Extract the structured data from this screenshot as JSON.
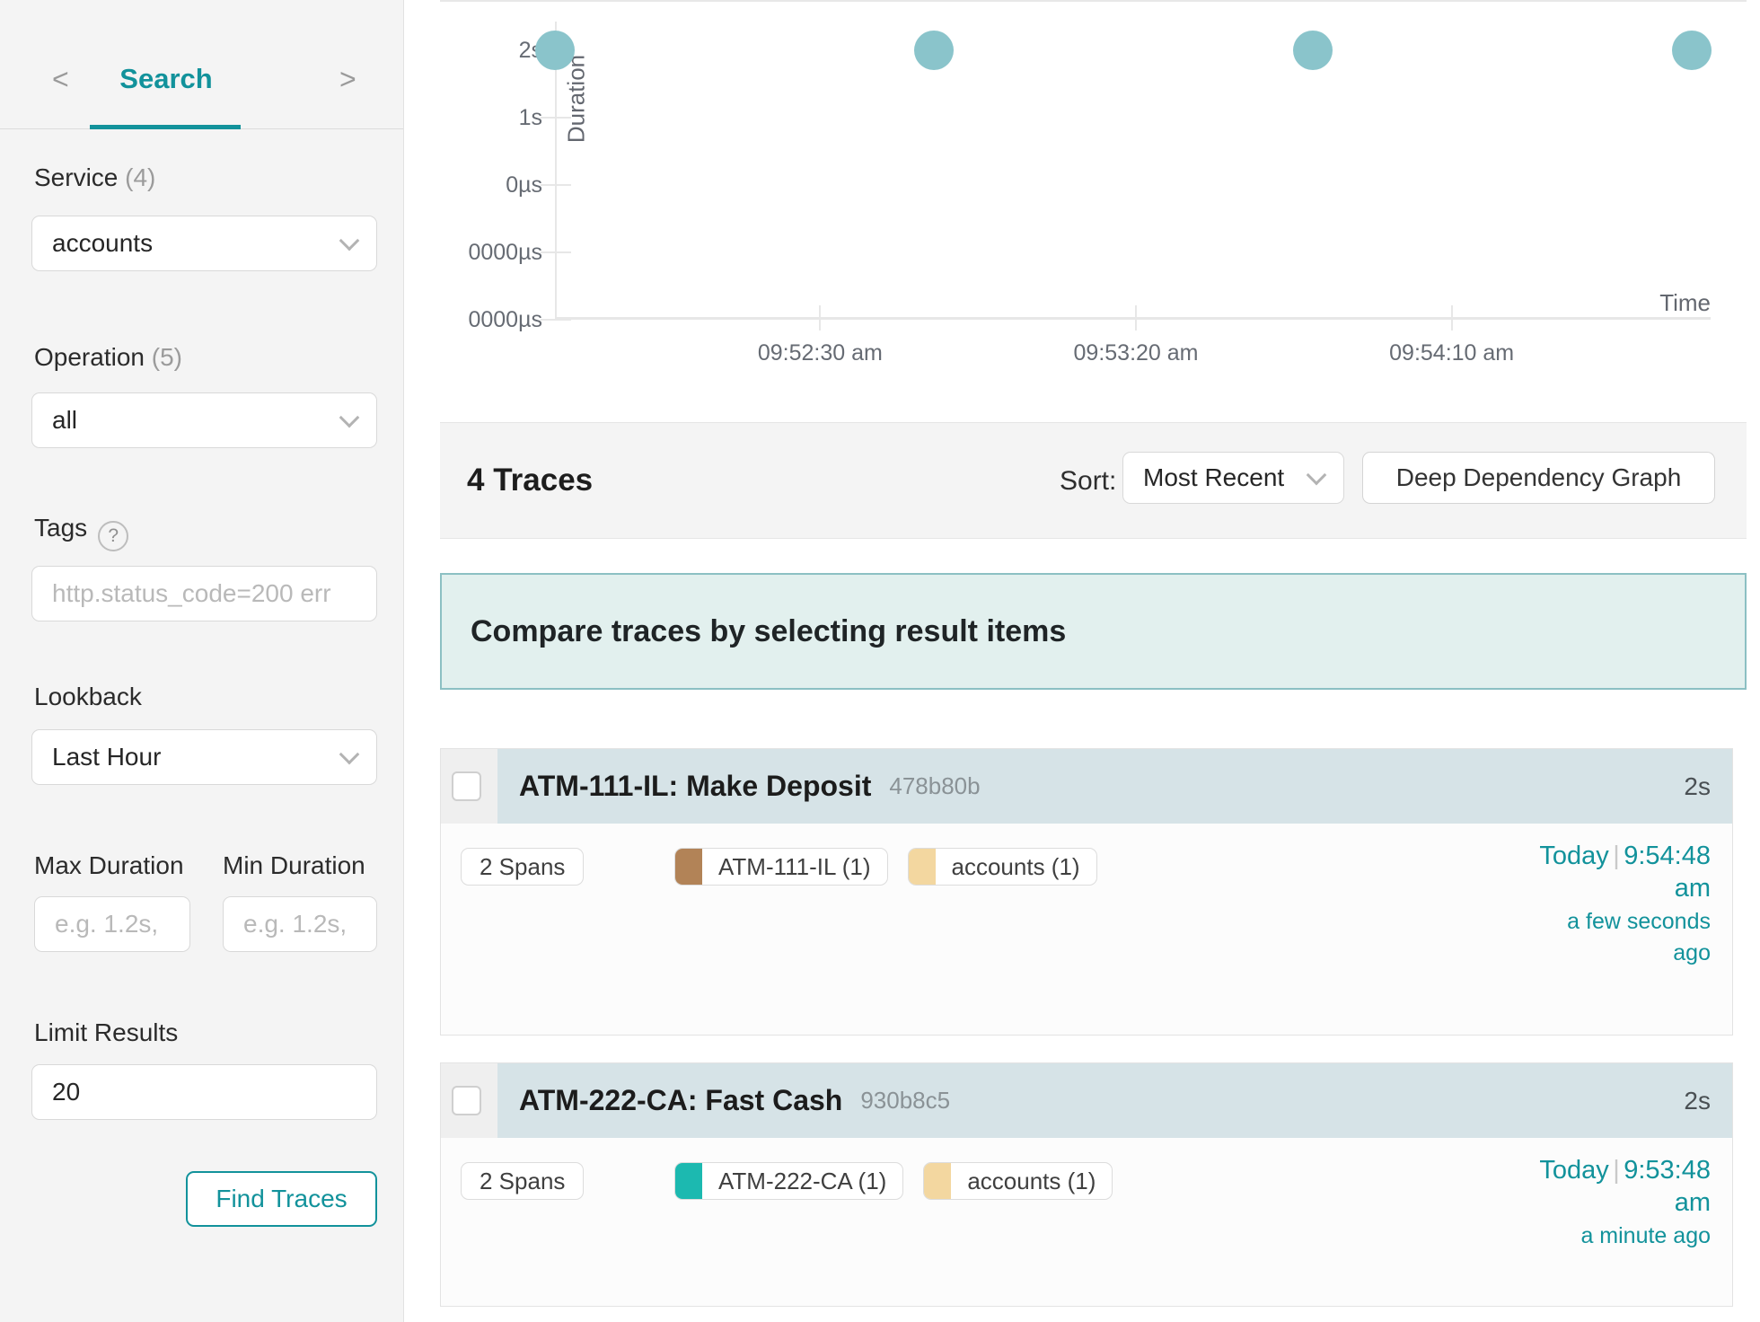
{
  "accent_color": "#12929b",
  "sidebar": {
    "nav": {
      "back": "<",
      "title": "Search",
      "forward": ">"
    },
    "service": {
      "label": "Service",
      "count": "(4)",
      "value": "accounts"
    },
    "operation": {
      "label": "Operation",
      "count": "(5)",
      "value": "all"
    },
    "tags": {
      "label": "Tags",
      "help_icon": "?",
      "placeholder": "http.status_code=200 err"
    },
    "lookback": {
      "label": "Lookback",
      "value": "Last Hour"
    },
    "max_duration": {
      "label": "Max Duration",
      "placeholder": "e.g. 1.2s,"
    },
    "min_duration": {
      "label": "Min Duration",
      "placeholder": "e.g. 1.2s,"
    },
    "limit": {
      "label": "Limit Results",
      "value": "20"
    },
    "find_button": "Find Traces"
  },
  "chart_data": {
    "type": "scatter",
    "title": "",
    "xlabel": "Time",
    "ylabel": "Duration",
    "grid": false,
    "legend": false,
    "point_color": "#8ac4cb",
    "yticks": [
      {
        "label": "2s"
      },
      {
        "label": "1s"
      },
      {
        "label": "0µs"
      },
      {
        "label": "0000µs"
      },
      {
        "label": "0000µs"
      }
    ],
    "xticks": [
      {
        "label": "09:52:30 am",
        "time": "09:52:30"
      },
      {
        "label": "09:53:20 am",
        "time": "09:53:20"
      },
      {
        "label": "09:54:10 am",
        "time": "09:54:10"
      }
    ],
    "x_domain": [
      "09:51:48",
      "09:54:51"
    ],
    "points": [
      {
        "time": "09:51:48",
        "duration": "2s"
      },
      {
        "time": "09:52:48",
        "duration": "2s"
      },
      {
        "time": "09:53:48",
        "duration": "2s"
      },
      {
        "time": "09:54:48",
        "duration": "2s"
      }
    ]
  },
  "results_header": {
    "count_label": "4 Traces",
    "sort_label": "Sort:",
    "sort_value": "Most Recent",
    "ddg_button": "Deep Dependency Graph"
  },
  "compare_banner": "Compare traces by selecting result items",
  "time_separator": "|",
  "traces": [
    {
      "title": "ATM-111-IL: Make Deposit",
      "trace_id": "478b80b",
      "duration": "2s",
      "spans": "2 Spans",
      "tags": [
        {
          "label": "ATM-111-IL (1)",
          "color": "#b28357"
        },
        {
          "label": "accounts (1)",
          "color": "#f3d7a0"
        }
      ],
      "date": "Today",
      "time": "9:54:48 am",
      "relative": "a few seconds ago"
    },
    {
      "title": "ATM-222-CA: Fast Cash",
      "trace_id": "930b8c5",
      "duration": "2s",
      "spans": "2 Spans",
      "tags": [
        {
          "label": "ATM-222-CA (1)",
          "color": "#1cb9b0"
        },
        {
          "label": "accounts (1)",
          "color": "#f3d7a0"
        }
      ],
      "date": "Today",
      "time": "9:53:48 am",
      "relative": "a minute ago"
    }
  ]
}
